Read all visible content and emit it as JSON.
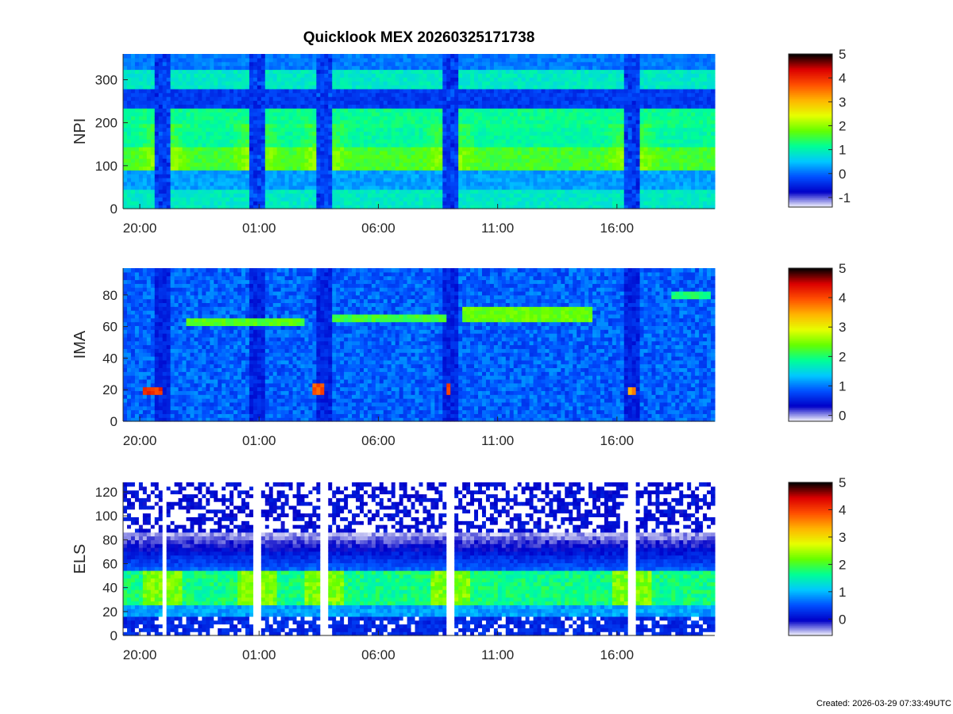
{
  "figure": {
    "title": "Quicklook MEX 20260325171738",
    "footer": "Created: 2026-03-29 07:33:49UTC"
  },
  "chart_data": [
    {
      "type": "heatmap",
      "instrument": "NPI",
      "ylabel": "NPI",
      "ylim": [
        0,
        360
      ],
      "yticks": [
        0,
        100,
        200,
        300
      ],
      "x_tick_labels": [
        "20:00",
        "01:00",
        "06:00",
        "11:00",
        "16:00"
      ],
      "x_range_hours": [
        19.3,
        44.1
      ],
      "colorbar": {
        "range": [
          -1.4,
          5
        ],
        "ticks": [
          -1,
          0,
          1,
          2,
          3,
          4,
          5
        ]
      },
      "colormap": [
        "#ffffff",
        "#0000c8",
        "#0050ff",
        "#00c8ff",
        "#00ff96",
        "#64ff00",
        "#e6ff00",
        "#ffb400",
        "#ff5000",
        "#dc0000",
        "#000000"
      ],
      "band_baseline_levels": [
        {
          "y": [
            0,
            45
          ],
          "level": 0.9
        },
        {
          "y": [
            45,
            90
          ],
          "level": 0.3
        },
        {
          "y": [
            90,
            140
          ],
          "level": 1.6
        },
        {
          "y": [
            140,
            185
          ],
          "level": 1.1
        },
        {
          "y": [
            185,
            235
          ],
          "level": 1.2
        },
        {
          "y": [
            235,
            280
          ],
          "level": -0.3
        },
        {
          "y": [
            280,
            320
          ],
          "level": 0.9
        },
        {
          "y": [
            320,
            360
          ],
          "level": 0.1
        }
      ]
    },
    {
      "type": "heatmap",
      "instrument": "IMA",
      "ylabel": "IMA",
      "ylim": [
        0,
        97
      ],
      "yticks": [
        0,
        20,
        40,
        60,
        80
      ],
      "x_tick_labels": [
        "20:00",
        "01:00",
        "06:00",
        "11:00",
        "16:00"
      ],
      "x_range_hours": [
        19.3,
        44.1
      ],
      "colorbar": {
        "range": [
          -0.2,
          5
        ],
        "ticks": [
          0,
          1,
          2,
          3,
          4,
          5
        ]
      },
      "background_level": 0.9,
      "line_traces": [
        {
          "x_hours": [
            21.9,
            26.9
          ],
          "y": 64,
          "level": 2.3
        },
        {
          "x_hours": [
            28.1,
            32.8
          ],
          "y": 66,
          "level": 2.2
        },
        {
          "x_hours": [
            33.5,
            39.0
          ],
          "y": 70,
          "level": 2.4
        },
        {
          "x_hours": [
            33.5,
            39.0
          ],
          "y": 66,
          "level": 2.4
        },
        {
          "x_hours": [
            42.2,
            43.9
          ],
          "y": 80,
          "level": 2.0
        }
      ],
      "hotspots": [
        {
          "x_hours": [
            20.1,
            21.0
          ],
          "y": [
            17,
            22
          ],
          "level": 4.2
        },
        {
          "x_hours": [
            27.3,
            27.8
          ],
          "y": [
            17,
            24
          ],
          "level": 4.0
        },
        {
          "x_hours": [
            32.8,
            33.1
          ],
          "y": [
            18,
            24
          ],
          "level": 4.2
        },
        {
          "x_hours": [
            40.4,
            40.8
          ],
          "y": [
            17,
            22
          ],
          "level": 3.6
        }
      ]
    },
    {
      "type": "heatmap",
      "instrument": "ELS",
      "ylabel": "ELS",
      "ylim": [
        0,
        128
      ],
      "yticks": [
        0,
        20,
        40,
        60,
        80,
        100,
        120
      ],
      "x_tick_labels": [
        "20:00",
        "01:00",
        "06:00",
        "11:00",
        "16:00"
      ],
      "x_range_hours": [
        19.3,
        44.1
      ],
      "colorbar": {
        "range": [
          -0.6,
          5
        ],
        "ticks": [
          0,
          1,
          2,
          3,
          4,
          5
        ]
      },
      "core_band_y": [
        25,
        55
      ],
      "core_level": 1.7,
      "noise_region_y": [
        85,
        128
      ]
    }
  ]
}
